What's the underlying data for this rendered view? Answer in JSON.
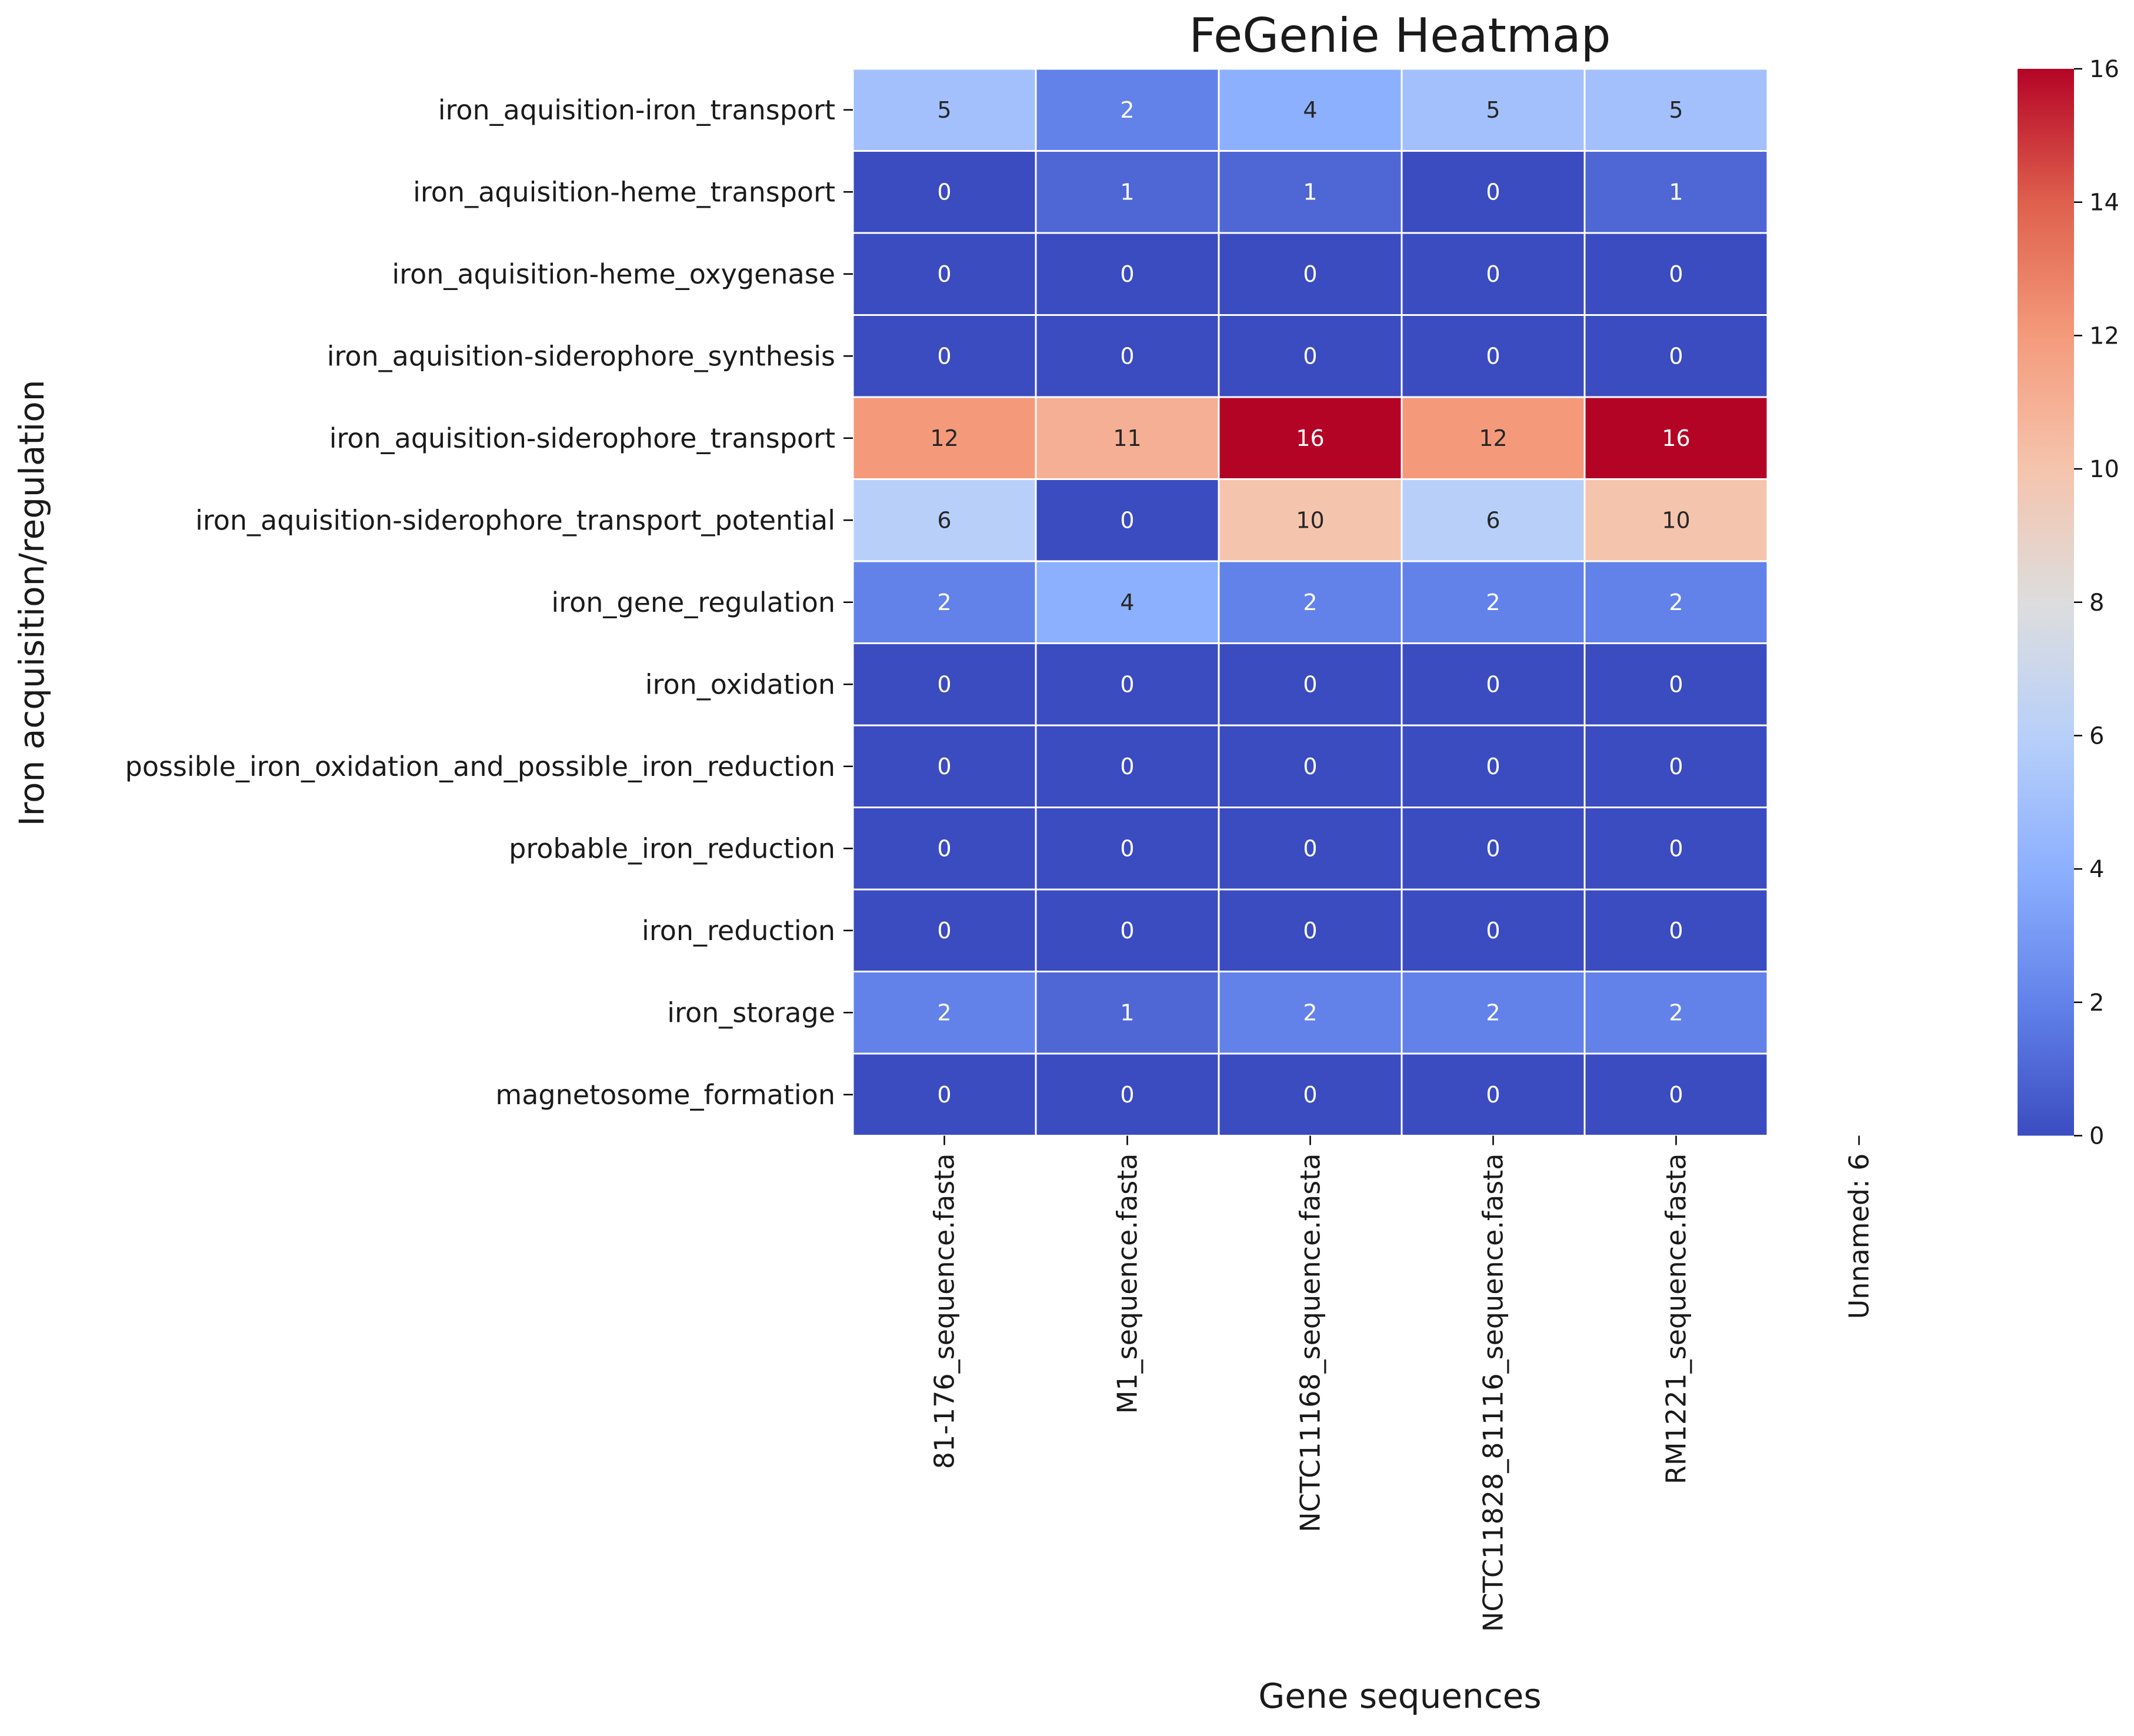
{
  "chart_data": {
    "type": "heatmap",
    "title": "FeGenie Heatmap",
    "xlabel": "Gene sequences",
    "ylabel": "Iron acquisition/regulation",
    "columns": [
      "81-176_sequence.fasta",
      "M1_sequence.fasta",
      "NCTC11168_sequence.fasta",
      "NCTC11828_81116_sequence.fasta",
      "RM1221_sequence.fasta",
      "Unnamed: 6"
    ],
    "rows": [
      "iron_aquisition-iron_transport",
      "iron_aquisition-heme_transport",
      "iron_aquisition-heme_oxygenase",
      "iron_aquisition-siderophore_synthesis",
      "iron_aquisition-siderophore_transport",
      "iron_aquisition-siderophore_transport_potential",
      "iron_gene_regulation",
      "iron_oxidation",
      "possible_iron_oxidation_and_possible_iron_reduction",
      "probable_iron_reduction",
      "iron_reduction",
      "iron_storage",
      "magnetosome_formation"
    ],
    "values": [
      [
        5,
        2,
        4,
        5,
        5,
        null
      ],
      [
        0,
        1,
        1,
        0,
        1,
        null
      ],
      [
        0,
        0,
        0,
        0,
        0,
        null
      ],
      [
        0,
        0,
        0,
        0,
        0,
        null
      ],
      [
        12,
        11,
        16,
        12,
        16,
        null
      ],
      [
        6,
        0,
        10,
        6,
        10,
        null
      ],
      [
        2,
        4,
        2,
        2,
        2,
        null
      ],
      [
        0,
        0,
        0,
        0,
        0,
        null
      ],
      [
        0,
        0,
        0,
        0,
        0,
        null
      ],
      [
        0,
        0,
        0,
        0,
        0,
        null
      ],
      [
        0,
        0,
        0,
        0,
        0,
        null
      ],
      [
        2,
        1,
        2,
        2,
        2,
        null
      ],
      [
        0,
        0,
        0,
        0,
        0,
        null
      ]
    ],
    "colormap": "coolwarm",
    "vmin": 0,
    "vmax": 16,
    "colorbar_ticks": [
      0,
      2,
      4,
      6,
      8,
      10,
      12,
      14,
      16
    ],
    "annotations": true
  }
}
